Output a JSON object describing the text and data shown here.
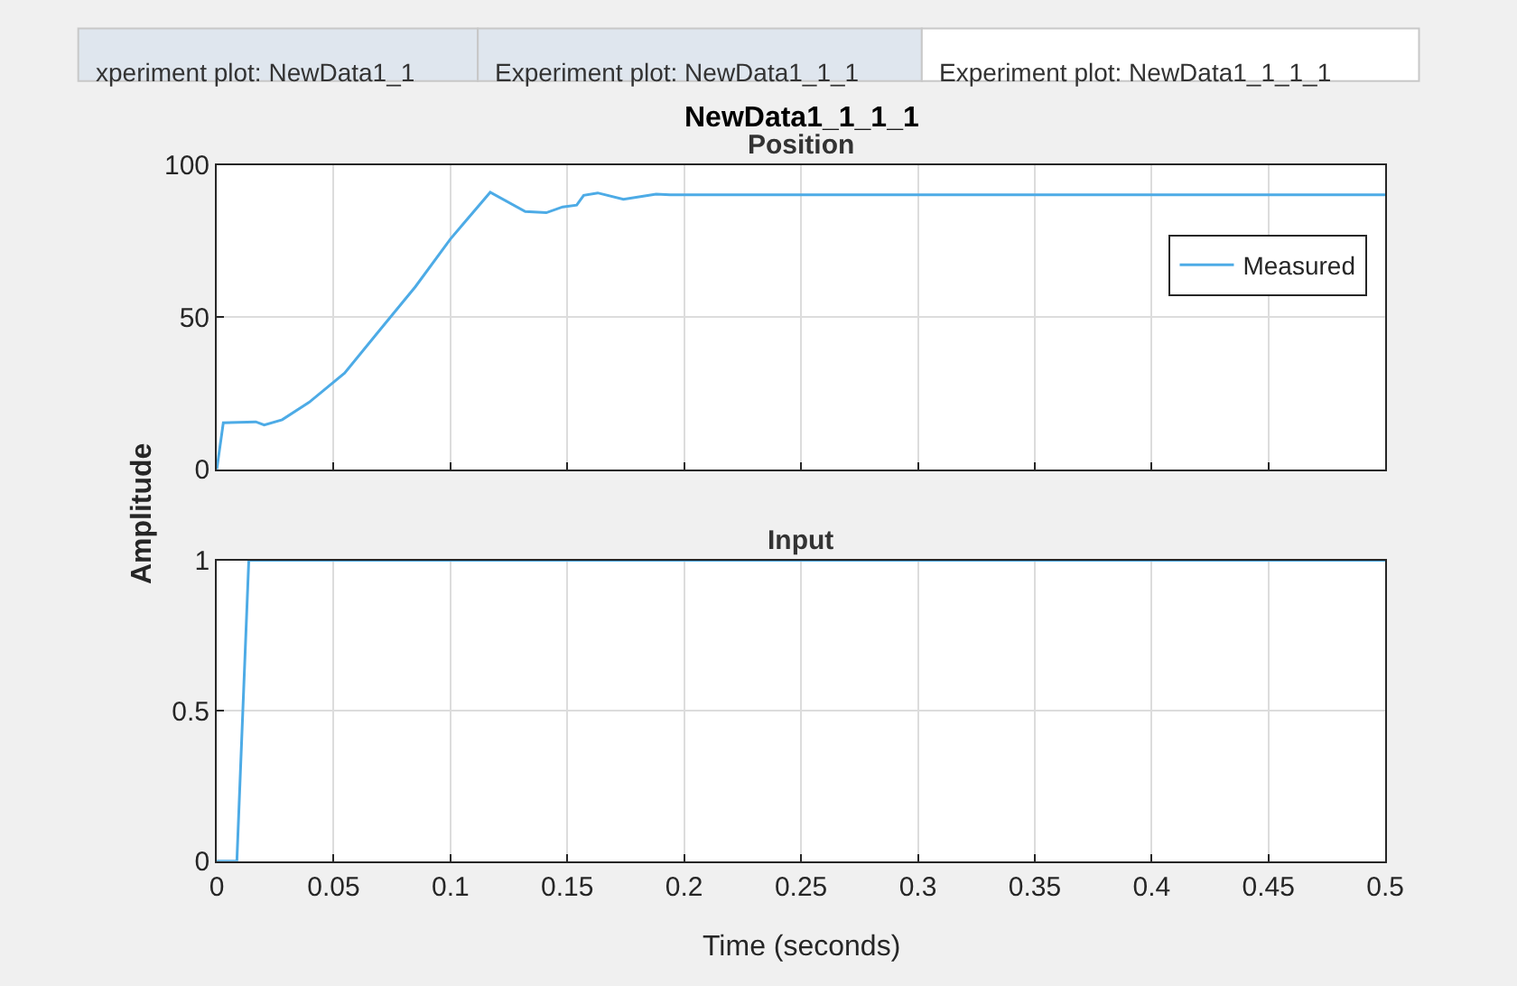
{
  "chart_data": [
    {
      "type": "line",
      "title": "NewData1_1_1_1",
      "subtitle": "Position",
      "ylabel": "Amplitude",
      "annotations": [
        "xperiment plot: NewData1_1",
        "Experiment plot: NewData1_1_1",
        "Experiment plot: NewData1_1_1_1"
      ],
      "series": [
        {
          "name": "Measured",
          "color": "#4dabe6",
          "x": [
            0,
            0.0028,
            0.0167,
            0.0203,
            0.028,
            0.0395,
            0.0547,
            0.07,
            0.085,
            0.1,
            0.117,
            0.132,
            0.141,
            0.148,
            0.154,
            0.157,
            0.163,
            0.174,
            0.188,
            0.194,
            0.5
          ],
          "values": [
            0,
            15.3,
            15.6,
            14.6,
            16.3,
            22,
            31.6,
            46,
            60,
            75.7,
            91,
            84.7,
            84.3,
            86.2,
            86.8,
            90,
            90.8,
            88.7,
            90.4,
            90.2,
            90.2
          ]
        }
      ],
      "xlim": [
        0,
        0.5
      ],
      "xticks": [
        0,
        0.05,
        0.1,
        0.15,
        0.2,
        0.25,
        0.3,
        0.35,
        0.4,
        0.45,
        0.5
      ],
      "ylim": [
        0,
        100
      ],
      "yticks": [
        0,
        50,
        100
      ],
      "grid": true,
      "legend": "top right",
      "tick_labels": "y",
      "marker": "none",
      "line_style": "solid"
    },
    {
      "type": "line",
      "subtitle": "Input",
      "xlabel": "Time (seconds)",
      "series": [
        {
          "color": "#4dabe6",
          "x": [
            0,
            0.0086,
            0.0137,
            0.5
          ],
          "values": [
            0,
            0,
            1,
            1
          ]
        }
      ],
      "xlim": [
        0,
        0.5
      ],
      "xticks": [
        0,
        0.05,
        0.1,
        0.15,
        0.2,
        0.25,
        0.3,
        0.35,
        0.4,
        0.45,
        0.5
      ],
      "ylim": [
        0,
        1
      ],
      "yticks": [
        0,
        0.5,
        1
      ],
      "grid": true,
      "marker": "none",
      "line_style": "solid"
    }
  ]
}
